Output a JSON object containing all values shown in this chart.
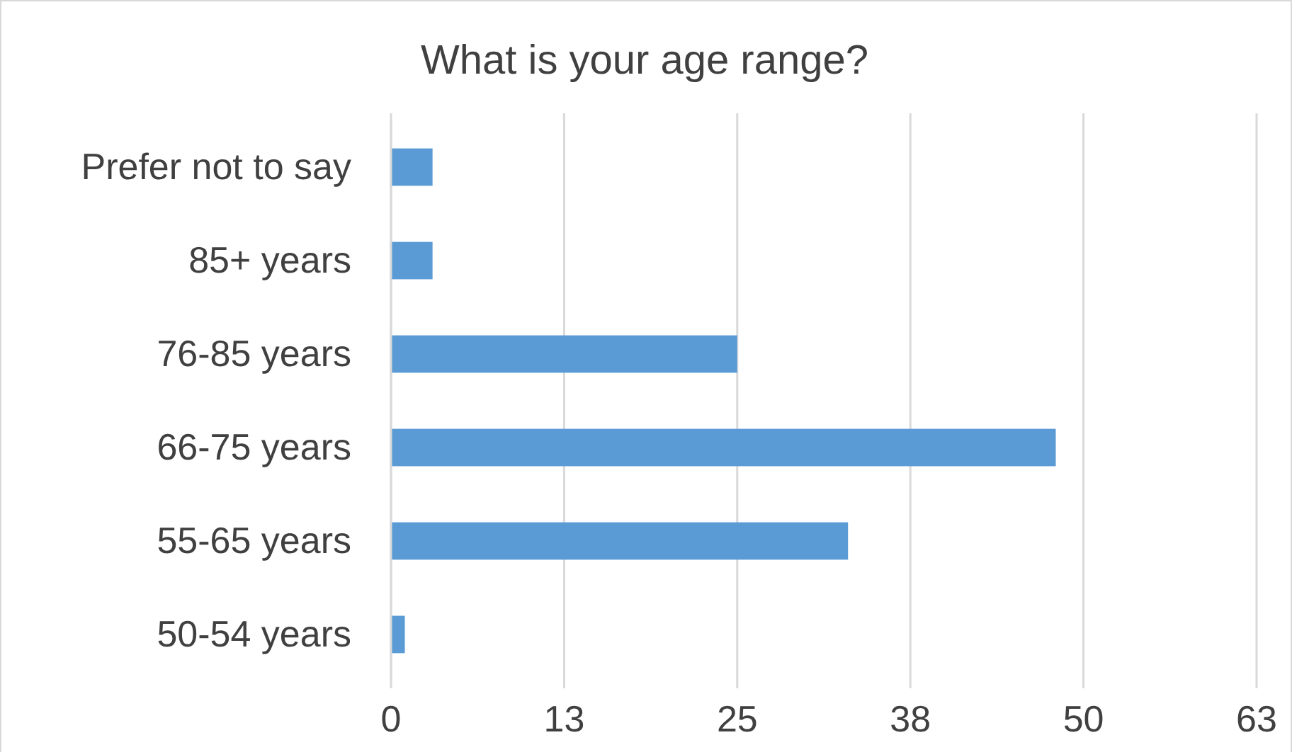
{
  "chart_data": {
    "type": "bar",
    "orientation": "horizontal",
    "title": "What is your age range?",
    "categories": [
      "Prefer not to say",
      "85+ years",
      "76-85 years",
      "66-75 years",
      "55-65 years",
      "50-54 years"
    ],
    "values": [
      3,
      3,
      25,
      48,
      33,
      1
    ],
    "color": "#5b9bd5",
    "xlim": [
      0,
      62.5
    ],
    "xticks": [
      0,
      {
        "value": 12.5,
        "label": "13"
      },
      25,
      {
        "value": 37.5,
        "label": "38"
      },
      50,
      {
        "value": 62.5,
        "label": "63"
      }
    ],
    "grid": "x"
  }
}
